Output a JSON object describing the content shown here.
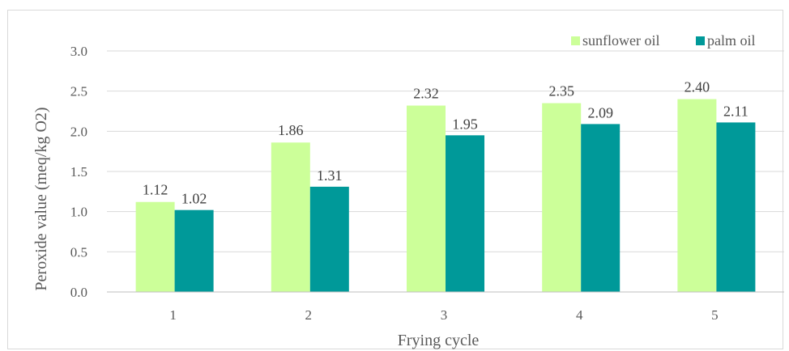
{
  "chart_data": {
    "type": "bar",
    "categories": [
      "1",
      "2",
      "3",
      "4",
      "5"
    ],
    "series": [
      {
        "name": "sunflower oil",
        "values": [
          1.12,
          1.86,
          2.32,
          2.35,
          2.4
        ],
        "labels": [
          "1.12",
          "1.86",
          "2.32",
          "2.35",
          "2.40"
        ],
        "color": "#ccff99"
      },
      {
        "name": "palm oil",
        "values": [
          1.02,
          1.31,
          1.95,
          2.09,
          2.11
        ],
        "labels": [
          "1.02",
          "1.31",
          "1.95",
          "2.09",
          "2.11"
        ],
        "color": "#009999"
      }
    ],
    "xlabel": "Frying cycle",
    "ylabel": "Peroxide value (meq/kg O2)",
    "ylim": [
      0,
      3.0
    ],
    "yticks": [
      "0.0",
      "0.5",
      "1.0",
      "1.5",
      "2.0",
      "2.5",
      "3.0"
    ],
    "grid": "horizontal",
    "legend_position": "top-right",
    "colors": {
      "grid": "#d9d9d9",
      "axis": "#bfbfbf"
    }
  }
}
